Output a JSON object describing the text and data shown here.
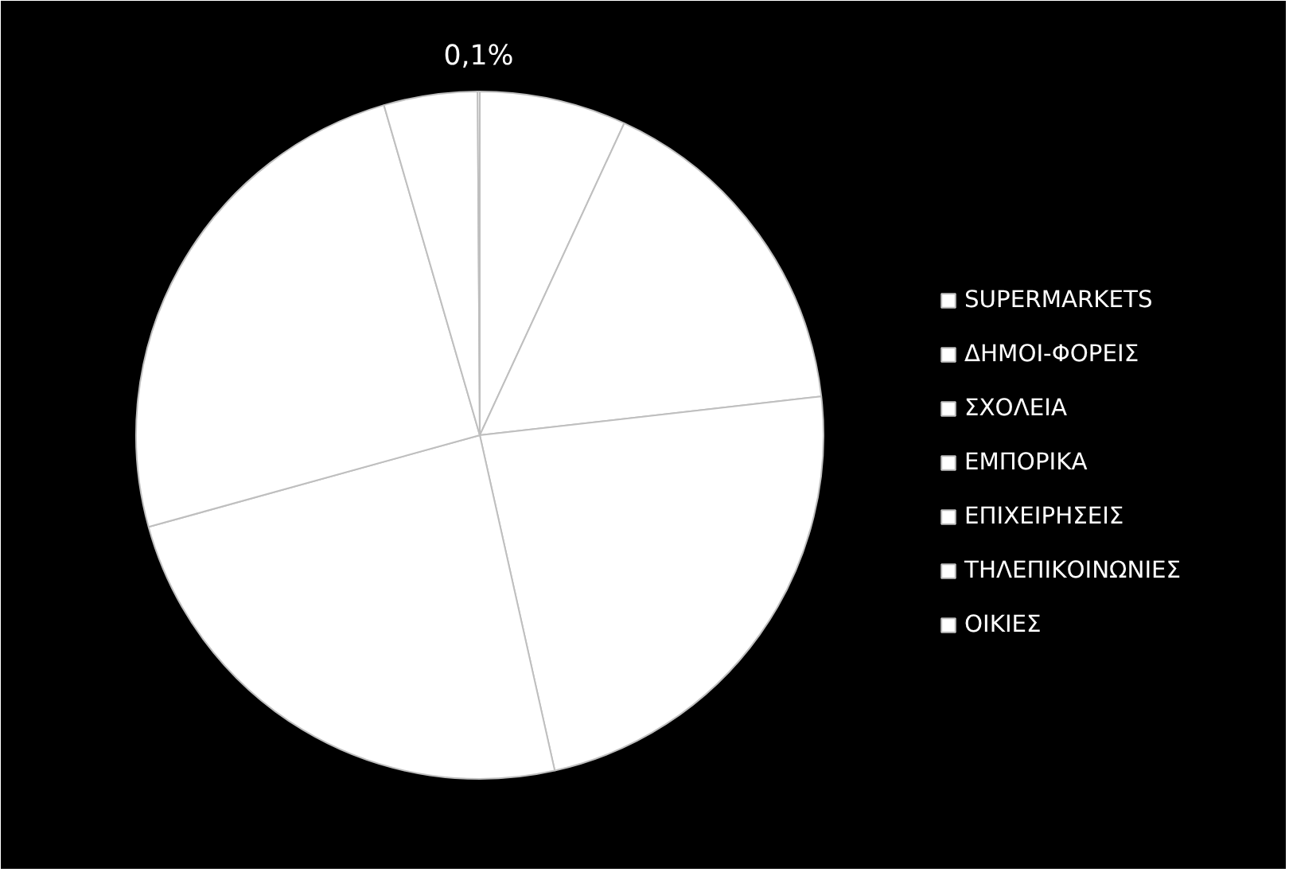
{
  "chart_data": {
    "type": "pie",
    "categories": [
      "SUPERMARKETS",
      "ΔΗΜΟΙ-ΦΟΡΕΙΣ",
      "ΣΧΟΛΕΙΑ",
      "ΕΜΠΟΡΙΚΑ",
      "ΕΠΙΧΕΙΡΗΣΕΙΣ",
      "ΤΗΛΕΠΙΚΟΙΝΩΝΙΕΣ",
      "ΟΙΚΙΕΣ"
    ],
    "values": [
      6.9,
      16.3,
      23.3,
      24.2,
      24.8,
      4.4,
      0.1
    ],
    "colors": [
      "#ffffff",
      "#ffffff",
      "#ffffff",
      "#ffffff",
      "#ffffff",
      "#ffffff",
      "#ffffff"
    ],
    "value_labels": [
      null,
      null,
      null,
      null,
      null,
      null,
      "0,1%"
    ],
    "legend": "right"
  }
}
